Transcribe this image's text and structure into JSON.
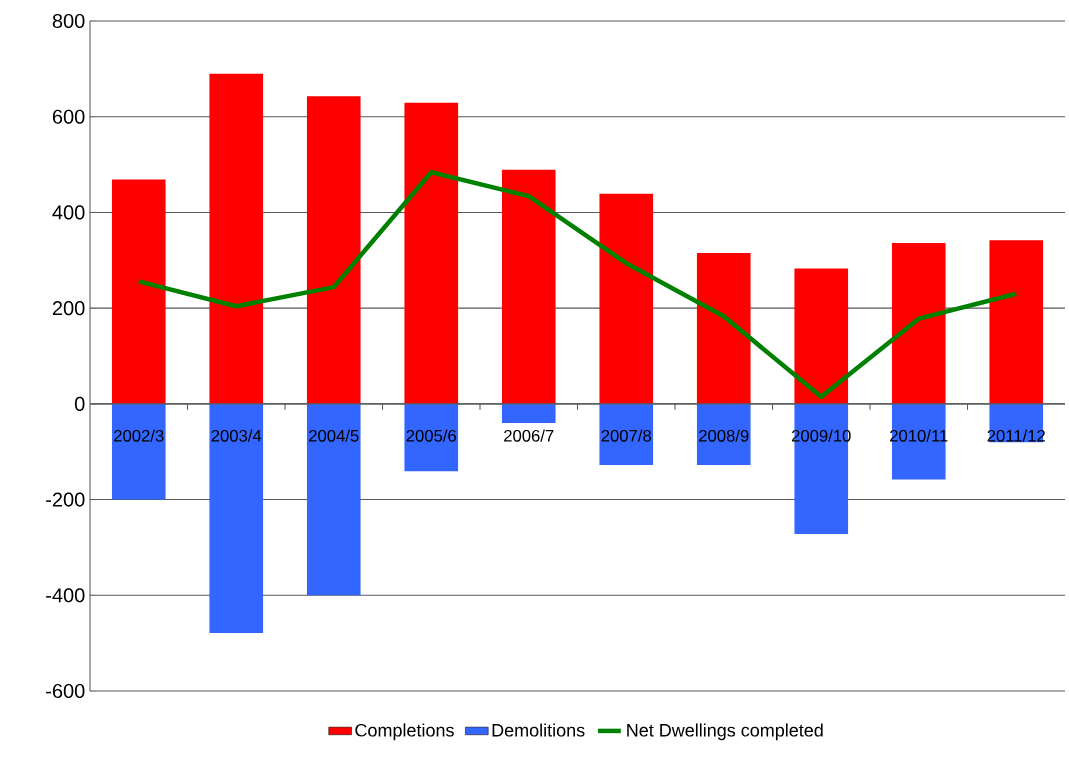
{
  "chart_data": {
    "type": "bar",
    "categories": [
      "2002/3",
      "2003/4",
      "2004/5",
      "2005/6",
      "2006/7",
      "2007/8",
      "2008/9",
      "2009/10",
      "2010/11",
      "2011/12"
    ],
    "series": [
      {
        "name": "Completions",
        "color": "#ff0000",
        "values": [
          469,
          690,
          643,
          629,
          489,
          439,
          315,
          283,
          336,
          342
        ]
      },
      {
        "name": "Demolitions",
        "color": "#3366ff",
        "values": [
          -200,
          -479,
          -400,
          -141,
          -40,
          -128,
          -128,
          -272,
          -158,
          -80
        ]
      },
      {
        "name": "Net Dwellings completed",
        "type": "line",
        "color": "#008000",
        "values": [
          256,
          204,
          244,
          484,
          434,
          294,
          183,
          15,
          178,
          230
        ]
      }
    ],
    "ylim": [
      -600,
      800
    ],
    "yticks": [
      -600,
      -400,
      -200,
      0,
      200,
      400,
      600,
      800
    ],
    "stacked": true,
    "grid": "y",
    "legend": "bottom",
    "marker": "none",
    "line_style": "solid"
  }
}
